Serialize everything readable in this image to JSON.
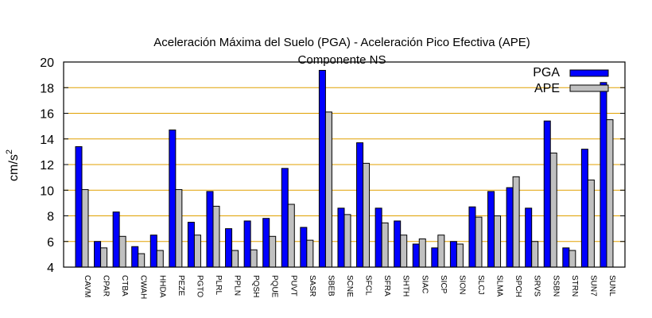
{
  "chart_data": {
    "type": "bar",
    "title": "Aceleración Máxima del Suelo (PGA) -  Aceleración Pico Efectiva (APE)",
    "subtitle": "Componente NS",
    "xlabel": "",
    "ylabel": "cm/s",
    "ylabel_sup": "2",
    "ylim": [
      4,
      20
    ],
    "yticks": [
      4,
      6,
      8,
      10,
      12,
      14,
      16,
      18,
      20
    ],
    "grid": true,
    "legend_position": "top-right",
    "categories": [
      "CAVM",
      "CPAR",
      "CTBA",
      "CWAH",
      "HHDA",
      "PEZE",
      "PGTO",
      "PLRL",
      "PPLN",
      "PQSH",
      "PQUE",
      "PUVT",
      "SASR",
      "SBEB",
      "SCNE",
      "SFCL",
      "SFRA",
      "SHTH",
      "SIAC",
      "SICP",
      "SION",
      "SLCJ",
      "SLMA",
      "SPCH",
      "SRVS",
      "SSBN",
      "STRN",
      "SUN7",
      "SUNL"
    ],
    "series": [
      {
        "name": "PGA",
        "color": "#0000ff",
        "values": [
          13.4,
          6.0,
          8.3,
          5.6,
          6.5,
          14.7,
          7.5,
          9.9,
          7.0,
          7.6,
          7.8,
          11.7,
          7.1,
          19.35,
          8.6,
          13.7,
          8.6,
          7.6,
          5.8,
          5.5,
          6.0,
          8.7,
          9.9,
          10.2,
          8.6,
          15.4,
          5.5,
          13.2,
          18.4
        ]
      },
      {
        "name": "APE",
        "color": "#c0c0c0",
        "values": [
          10.05,
          5.5,
          6.4,
          5.05,
          5.3,
          10.05,
          6.5,
          8.75,
          5.3,
          5.35,
          6.4,
          8.9,
          6.1,
          16.1,
          8.1,
          12.1,
          7.45,
          6.5,
          6.2,
          6.5,
          5.8,
          7.9,
          8.0,
          11.05,
          6.0,
          12.9,
          5.3,
          10.8,
          15.5
        ]
      }
    ],
    "gridline_color": "#e0a000"
  }
}
